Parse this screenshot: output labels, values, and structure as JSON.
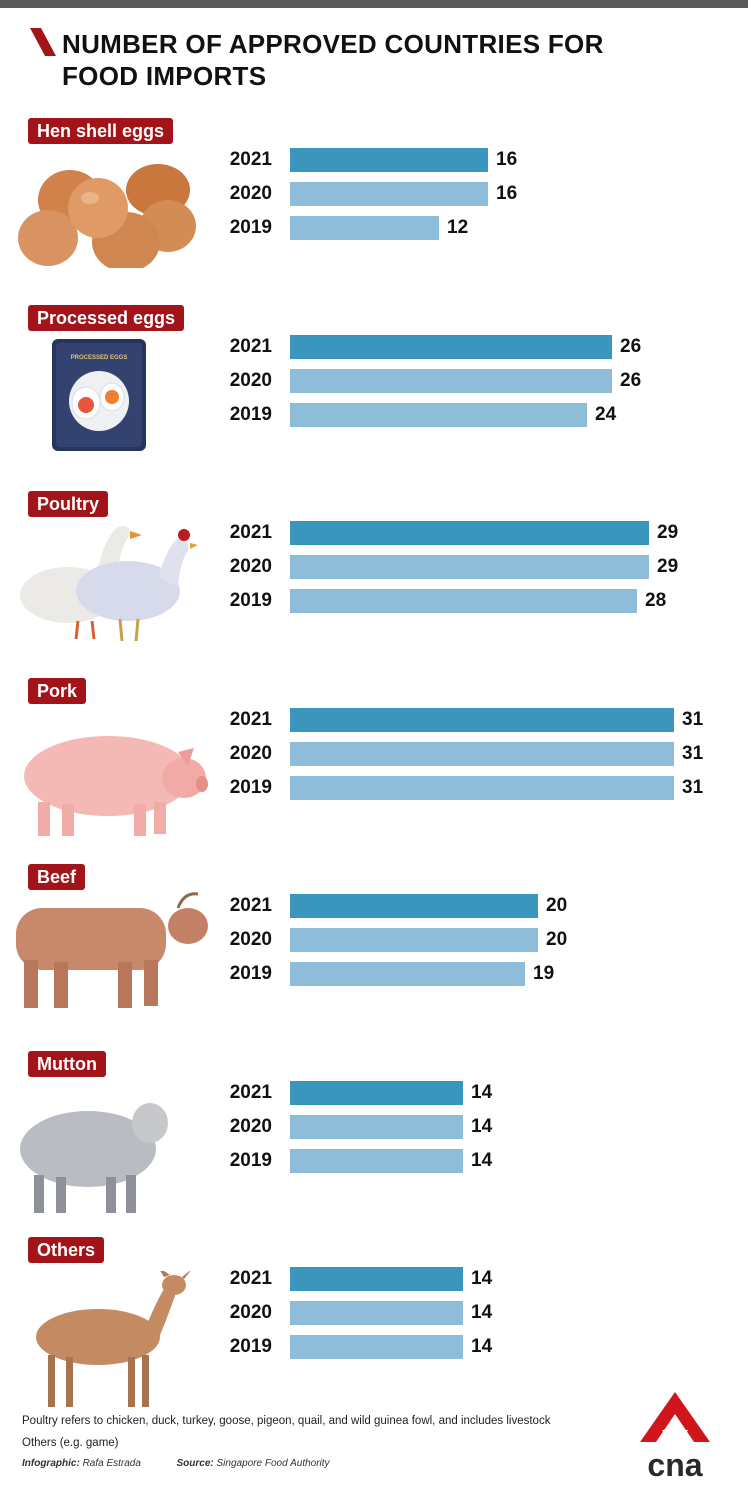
{
  "title": "NUMBER OF APPROVED COUNTRIES FOR FOOD IMPORTS",
  "colors": {
    "accent": "#a3141a",
    "bar_2021": "#3a96bd",
    "bar_previous": "#8dbdd8"
  },
  "chart_data": {
    "type": "bar",
    "orientation": "horizontal",
    "title": "NUMBER OF APPROVED COUNTRIES FOR FOOD IMPORTS",
    "series_names": [
      "2021",
      "2020",
      "2019"
    ],
    "xlim": [
      0,
      31
    ],
    "groups": [
      {
        "category": "Hen shell eggs",
        "rows": [
          {
            "year": "2021",
            "value": 16
          },
          {
            "year": "2020",
            "value": 16
          },
          {
            "year": "2019",
            "value": 12
          }
        ]
      },
      {
        "category": "Processed eggs",
        "rows": [
          {
            "year": "2021",
            "value": 26
          },
          {
            "year": "2020",
            "value": 26
          },
          {
            "year": "2019",
            "value": 24
          }
        ]
      },
      {
        "category": "Poultry",
        "rows": [
          {
            "year": "2021",
            "value": 29
          },
          {
            "year": "2020",
            "value": 29
          },
          {
            "year": "2019",
            "value": 28
          }
        ]
      },
      {
        "category": "Pork",
        "rows": [
          {
            "year": "2021",
            "value": 31
          },
          {
            "year": "2020",
            "value": 31
          },
          {
            "year": "2019",
            "value": 31
          }
        ]
      },
      {
        "category": "Beef",
        "rows": [
          {
            "year": "2021",
            "value": 20
          },
          {
            "year": "2020",
            "value": 20
          },
          {
            "year": "2019",
            "value": 19
          }
        ]
      },
      {
        "category": "Mutton",
        "rows": [
          {
            "year": "2021",
            "value": 14
          },
          {
            "year": "2020",
            "value": 14
          },
          {
            "year": "2019",
            "value": 14
          }
        ]
      },
      {
        "category": "Others",
        "rows": [
          {
            "year": "2021",
            "value": 14
          },
          {
            "year": "2020",
            "value": 14
          },
          {
            "year": "2019",
            "value": 14
          }
        ]
      }
    ]
  },
  "footnotes": [
    "Poultry refers to chicken, duck, turkey, goose, pigeon, quail, and wild guinea fowl, and includes livestock",
    "Others (e.g. game)"
  ],
  "credits": {
    "infographic_label": "Infographic:",
    "infographic_name": "Rafa Estrada",
    "source_label": "Source:",
    "source_name": "Singapore Food Authority"
  },
  "package_label": "PROCESSED EGGS",
  "logo_text": "cna",
  "icons": [
    "eggs-illustration",
    "processed-eggs-pack-illustration",
    "poultry-illustration",
    "pig-illustration",
    "cow-illustration",
    "sheep-illustration",
    "deer-illustration"
  ]
}
